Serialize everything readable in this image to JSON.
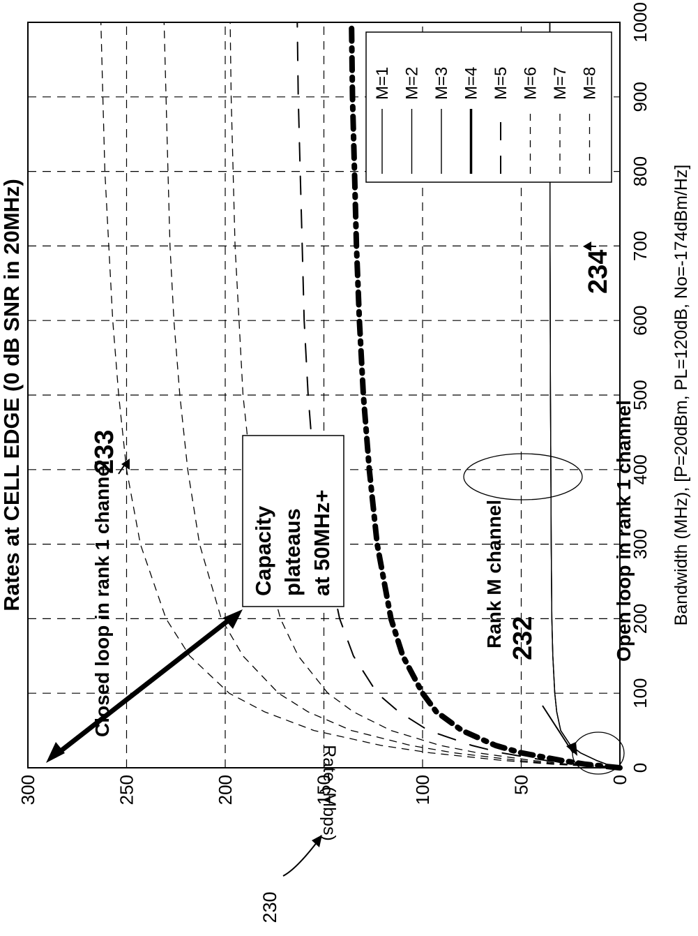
{
  "figure_label": "230",
  "chart_data": {
    "type": "line",
    "title": "Rates at CELL EDGE (0 dB SNR in 20MHz)",
    "xlabel": "Bandwidth (MHz), [P=20dBm, PL=120dB, No=-174dBm/Hz]",
    "ylabel": "Rate (Mbps)",
    "xlim": [
      0,
      1000
    ],
    "ylim": [
      0,
      300
    ],
    "x_ticks": [
      "0",
      "100",
      "200",
      "300",
      "400",
      "500",
      "600",
      "700",
      "800",
      "900",
      "1000"
    ],
    "y_ticks": [
      "0",
      "50",
      "100",
      "150",
      "200",
      "250",
      "300"
    ],
    "grid": true,
    "legend_position": "top-right (rotated)",
    "orientation": "rotated 90 degrees counter-clockwise",
    "x": [
      1,
      5,
      10,
      20,
      30,
      50,
      75,
      100,
      150,
      200,
      300,
      400,
      500,
      600,
      700,
      800,
      900,
      1000
    ],
    "series": [
      {
        "name": "M=1",
        "style": "solid",
        "values": [
          1.5,
          7,
          12,
          20,
          25,
          30,
          32,
          33,
          34,
          34.5,
          34.8,
          35,
          35.2,
          35.3,
          35.4,
          35.4,
          35.5,
          35.5
        ]
      },
      {
        "name": "M=2",
        "style": "solid",
        "values": [
          1.5,
          7,
          12,
          20,
          25,
          30,
          32,
          33,
          34,
          34.5,
          34.8,
          35,
          35.2,
          35.3,
          35.4,
          35.4,
          35.5,
          35.5
        ]
      },
      {
        "name": "M=3",
        "style": "solid",
        "values": [
          1.5,
          7,
          12,
          20,
          25,
          30,
          32,
          33,
          34,
          34.5,
          34.8,
          35,
          35.2,
          35.3,
          35.4,
          35.4,
          35.5,
          35.5
        ]
      },
      {
        "name": "M=4",
        "style": "dashdot-bold",
        "values": [
          4,
          18,
          30,
          50,
          63,
          80,
          93,
          100,
          110,
          116,
          123,
          127,
          130,
          132,
          133.5,
          134.5,
          135.5,
          136
        ]
      },
      {
        "name": "M=5",
        "style": "longdash",
        "values": [
          5,
          22,
          38,
          60,
          75,
          97,
          112,
          123,
          135,
          142,
          150,
          155,
          158,
          160,
          161,
          162,
          163,
          163.5
        ]
      },
      {
        "name": "M=6",
        "style": "dash",
        "values": [
          6,
          27,
          45,
          72,
          91,
          116,
          135,
          148,
          163,
          172,
          182,
          187,
          191,
          193,
          195,
          196,
          197,
          197.5
        ]
      },
      {
        "name": "M=7",
        "style": "dash",
        "values": [
          7,
          31,
          52,
          84,
          106,
          136,
          158,
          173,
          191,
          202,
          213,
          219,
          223,
          226,
          228,
          229,
          230,
          231
        ]
      },
      {
        "name": "M=8",
        "style": "dash",
        "values": [
          8,
          35,
          60,
          96,
          121,
          155,
          180,
          198,
          218,
          230,
          243,
          250,
          254,
          257,
          259,
          261,
          262,
          263
        ]
      }
    ],
    "annotations": {
      "closed_loop": "Closed loop in rank 1 channel",
      "closed_loop_ref": "233",
      "rank_m": "Rank M channel",
      "rank_m_ref": "232",
      "open_loop": "Open loop in rank 1 channel",
      "open_loop_ref": "234",
      "box_lines": [
        "Capacity",
        "plateaus",
        "at 50MHz+"
      ]
    }
  }
}
